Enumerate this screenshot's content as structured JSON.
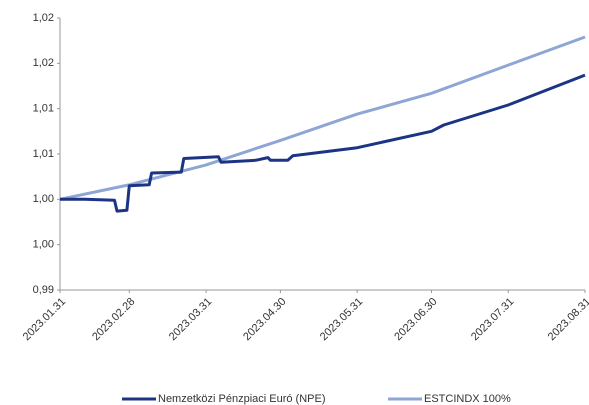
{
  "chart_data": {
    "type": "line",
    "ylim": [
      0.99,
      1.02
    ],
    "yticks": [
      {
        "value": 0.99,
        "label": "0,99"
      },
      {
        "value": 0.995,
        "label": "1,00"
      },
      {
        "value": 1.0,
        "label": "1,00"
      },
      {
        "value": 1.005,
        "label": "1,01"
      },
      {
        "value": 1.01,
        "label": "1,01"
      },
      {
        "value": 1.015,
        "label": "1,02"
      },
      {
        "value": 1.02,
        "label": "1,02"
      }
    ],
    "xlim": [
      "2023.01.31",
      "2023.08.31"
    ],
    "xticks": [
      "2023.01.31",
      "2023.02.28",
      "2023.03.31",
      "2023.04.30",
      "2023.05.31",
      "2023.06.30",
      "2023.07.31",
      "2023.08.31"
    ],
    "series": [
      {
        "name": "Nemzetközi Pénzpiaci Euró (NPE)",
        "color": "#1c3484",
        "x": [
          "2023.01.31",
          "2023.02.10",
          "2023.02.22",
          "2023.02.23",
          "2023.02.27",
          "2023.02.28",
          "2023.03.08",
          "2023.03.09",
          "2023.03.21",
          "2023.03.22",
          "2023.04.05",
          "2023.04.06",
          "2023.04.20",
          "2023.04.25",
          "2023.04.26",
          "2023.05.03",
          "2023.05.05",
          "2023.05.31",
          "2023.06.30",
          "2023.07.05",
          "2023.07.31",
          "2023.08.31"
        ],
        "values": [
          1.0,
          1.0,
          0.9999,
          0.9987,
          0.9988,
          1.0015,
          1.0016,
          1.0029,
          1.003,
          1.0045,
          1.0047,
          1.0041,
          1.0043,
          1.0046,
          1.0043,
          1.0043,
          1.0048,
          1.0057,
          1.0075,
          1.0082,
          1.0104,
          1.0137
        ]
      },
      {
        "name": "ESTCINDX 100%",
        "color": "#8ea6d6",
        "x": [
          "2023.01.31",
          "2023.02.28",
          "2023.03.31",
          "2023.04.30",
          "2023.05.31",
          "2023.06.30",
          "2023.07.31",
          "2023.08.31"
        ],
        "values": [
          1.0,
          1.0016,
          1.0038,
          1.0065,
          1.0094,
          1.0117,
          1.0148,
          1.0179
        ]
      }
    ]
  }
}
